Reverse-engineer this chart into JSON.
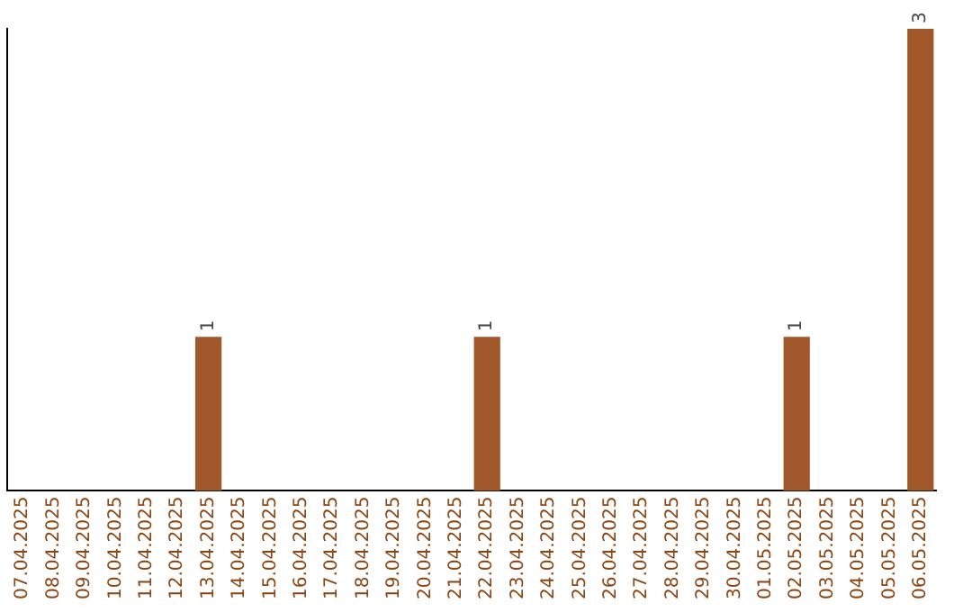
{
  "chart_data": {
    "type": "bar",
    "categories": [
      "07.04.2025",
      "08.04.2025",
      "09.04.2025",
      "10.04.2025",
      "11.04.2025",
      "12.04.2025",
      "13.04.2025",
      "14.04.2025",
      "15.04.2025",
      "16.04.2025",
      "17.04.2025",
      "18.04.2025",
      "19.04.2025",
      "20.04.2025",
      "21.04.2025",
      "22.04.2025",
      "23.04.2025",
      "24.04.2025",
      "25.04.2025",
      "26.04.2025",
      "27.04.2025",
      "28.04.2025",
      "29.04.2025",
      "30.04.2025",
      "01.05.2025",
      "02.05.2025",
      "03.05.2025",
      "04.05.2025",
      "05.05.2025",
      "06.05.2025"
    ],
    "values": [
      0,
      0,
      0,
      0,
      0,
      0,
      1,
      0,
      0,
      0,
      0,
      0,
      0,
      0,
      0,
      1,
      0,
      0,
      0,
      0,
      0,
      0,
      0,
      0,
      0,
      1,
      0,
      0,
      0,
      3
    ],
    "value_labels": [
      null,
      null,
      null,
      null,
      null,
      null,
      "1",
      null,
      null,
      null,
      null,
      null,
      null,
      null,
      null,
      "1",
      null,
      null,
      null,
      null,
      null,
      null,
      null,
      null,
      null,
      "1",
      null,
      null,
      null,
      "3"
    ],
    "color": "#a0582a",
    "grid": false,
    "legend": false,
    "tick_labels": "x"
  }
}
